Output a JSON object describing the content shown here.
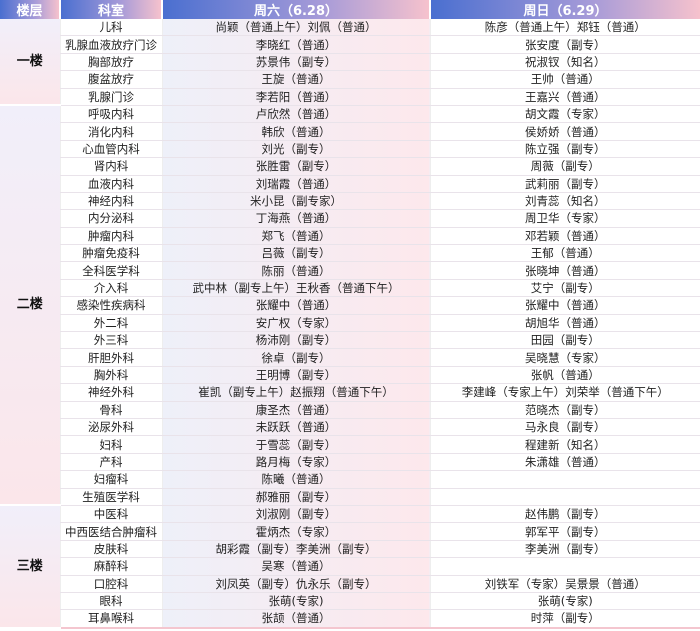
{
  "headers": {
    "floor": "楼层",
    "dept": "科室",
    "sat": "周六（6.28）",
    "sun": "周日（6.29）"
  },
  "colors": {
    "header_start": "#4a6fd0",
    "header_end": "#f6c2cd",
    "row_tint": "#fde8ec"
  },
  "floors": [
    {
      "name": "一楼",
      "rows": [
        {
          "dept": "儿科",
          "sat": "尚颖（普通上午）刘佩（普通）",
          "sun": "陈彦（普通上午）郑钰（普通）"
        },
        {
          "dept": "乳腺血液放疗门诊",
          "sat": "李晓红（普通）",
          "sun": "张安度（副专）"
        },
        {
          "dept": "胸部放疗",
          "sat": "苏景伟（副专）",
          "sun": "祝淑钗（知名）"
        },
        {
          "dept": "腹盆放疗",
          "sat": "王旋（普通）",
          "sun": "王帅（普通）"
        },
        {
          "dept": "乳腺门诊",
          "sat": "李若阳（普通）",
          "sun": "王嘉兴（普通）"
        }
      ]
    },
    {
      "name": "二楼",
      "rows": [
        {
          "dept": "呼吸内科",
          "sat": "卢欣然（普通）",
          "sun": "胡文霞（专家）"
        },
        {
          "dept": "消化内科",
          "sat": "韩欣（普通）",
          "sun": "侯娇娇（普通）"
        },
        {
          "dept": "心血管内科",
          "sat": "刘光（副专）",
          "sun": "陈立强（副专）"
        },
        {
          "dept": "肾内科",
          "sat": "张胜雷（副专）",
          "sun": "周薇（副专）"
        },
        {
          "dept": "血液内科",
          "sat": "刘瑞霞（普通）",
          "sun": "武莉丽（副专）"
        },
        {
          "dept": "神经内科",
          "sat": "米小昆（副专家）",
          "sun": "刘青蕊（知名）"
        },
        {
          "dept": "内分泌科",
          "sat": "丁海燕（普通）",
          "sun": "周卫华（专家）"
        },
        {
          "dept": "肿瘤内科",
          "sat": "郑飞（普通）",
          "sun": "邓若颖（普通）"
        },
        {
          "dept": "肿瘤免疫科",
          "sat": "吕薇（副专）",
          "sun": "王郁（普通）"
        },
        {
          "dept": "全科医学科",
          "sat": "陈丽（普通）",
          "sun": "张晓坤（普通）"
        },
        {
          "dept": "介入科",
          "sat": "武中林（副专上午）王秋香（普通下午）",
          "sun": "艾宁（副专）"
        },
        {
          "dept": "感染性疾病科",
          "sat": "张耀中（普通）",
          "sun": "张耀中（普通）"
        },
        {
          "dept": "外二科",
          "sat": "安广权（专家）",
          "sun": "胡旭华（普通）"
        },
        {
          "dept": "外三科",
          "sat": "杨沛刚（副专）",
          "sun": "田园（副专）"
        },
        {
          "dept": "肝胆外科",
          "sat": "徐卓（副专）",
          "sun": "吴晓慧（专家）"
        },
        {
          "dept": "胸外科",
          "sat": "王明博（副专）",
          "sun": "张帆（普通）"
        },
        {
          "dept": "神经外科",
          "sat": "崔凯（副专上午）赵振翔（普通下午）",
          "sun": "李建峰（专家上午）刘荣举（普通下午）"
        },
        {
          "dept": "骨科",
          "sat": "康圣杰（普通）",
          "sun": "范晓杰（副专）"
        },
        {
          "dept": "泌尿外科",
          "sat": "未跃跃（普通）",
          "sun": "马永良（副专）"
        },
        {
          "dept": "妇科",
          "sat": "于雪蕊（副专）",
          "sun": "程建新（知名）"
        },
        {
          "dept": "产科",
          "sat": "路月梅（专家）",
          "sun": "朱潇雄（普通）"
        },
        {
          "dept": "妇瘤科",
          "sat": "陈曦（普通）",
          "sun": ""
        },
        {
          "dept": "生殖医学科",
          "sat": "郝雅丽（副专）",
          "sun": ""
        }
      ]
    },
    {
      "name": "三楼",
      "rows": [
        {
          "dept": "中医科",
          "sat": "刘淑刚（副专）",
          "sun": "赵伟鹏（副专）"
        },
        {
          "dept": "中西医结合肿瘤科",
          "sat": "霍炳杰（专家）",
          "sun": "郭军平（副专）"
        },
        {
          "dept": "皮肤科",
          "sat": "胡彩霞（副专）李美洲（副专）",
          "sun": "李美洲（副专）"
        },
        {
          "dept": "麻醉科",
          "sat": "吴寒（普通）",
          "sun": ""
        },
        {
          "dept": "口腔科",
          "sat": "刘凤英（副专）仇永乐（副专）",
          "sun": "刘铁军（专家）吴景景（普通）"
        },
        {
          "dept": "眼科",
          "sat": "张萌(专家)",
          "sun": "张萌(专家)"
        },
        {
          "dept": "耳鼻喉科",
          "sat": "张颉（普通）",
          "sun": "时萍（副专）"
        }
      ]
    }
  ]
}
